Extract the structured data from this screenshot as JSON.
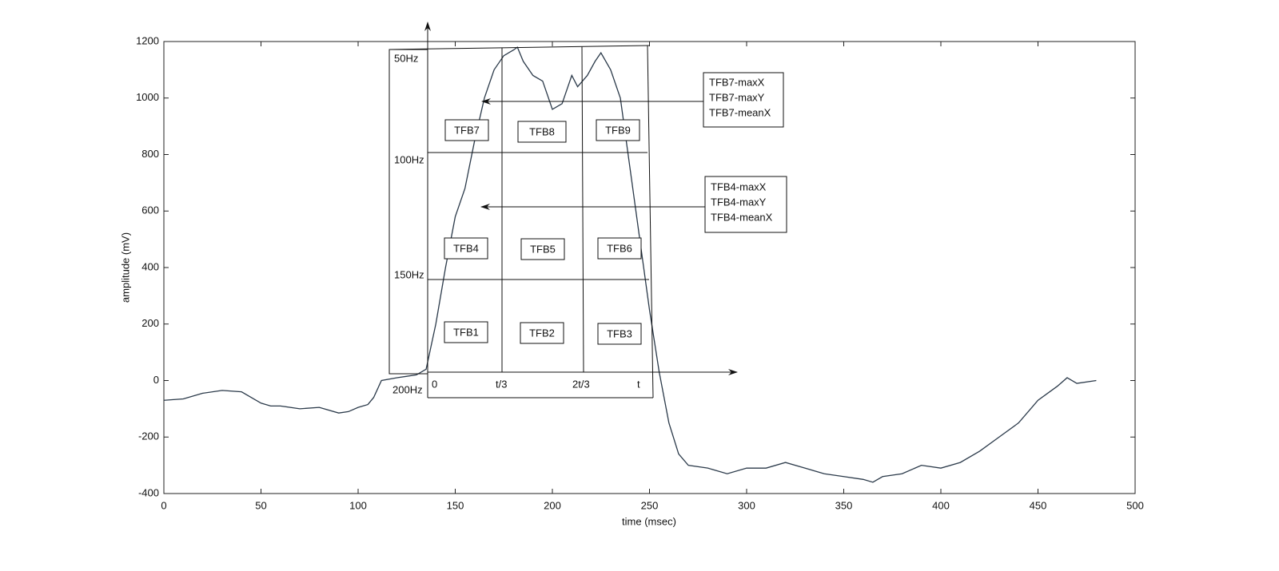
{
  "chart_data": {
    "type": "line",
    "xlabel": "time (msec)",
    "ylabel": "amplitude (mV)",
    "xlim": [
      0,
      500
    ],
    "xticks": [
      0,
      50,
      100,
      150,
      200,
      250,
      300,
      350,
      400,
      450,
      500
    ],
    "ylim": [
      -400,
      1200
    ],
    "yticks": [
      -400,
      -200,
      0,
      200,
      400,
      600,
      800,
      1000,
      1200
    ],
    "series": [
      {
        "color": "#2b3a4a",
        "x": [
          0,
          10,
          20,
          30,
          40,
          50,
          55,
          60,
          70,
          80,
          90,
          95,
          100,
          105,
          108,
          112,
          120,
          130,
          135,
          140,
          145,
          150,
          155,
          160,
          165,
          170,
          175,
          180,
          182,
          185,
          190,
          195,
          200,
          205,
          210,
          213,
          218,
          222,
          225,
          230,
          235,
          240,
          245,
          250,
          255,
          260,
          265,
          270,
          280,
          290,
          300,
          310,
          320,
          330,
          340,
          350,
          360,
          365,
          370,
          380,
          390,
          400,
          410,
          420,
          430,
          440,
          450,
          460,
          465,
          470,
          480
        ],
        "values": [
          -70,
          -65,
          -45,
          -35,
          -40,
          -80,
          -90,
          -90,
          -100,
          -95,
          -115,
          -110,
          -95,
          -85,
          -60,
          0,
          10,
          20,
          40,
          200,
          400,
          580,
          680,
          850,
          1000,
          1100,
          1150,
          1170,
          1180,
          1130,
          1080,
          1060,
          960,
          980,
          1080,
          1040,
          1080,
          1130,
          1160,
          1100,
          1000,
          750,
          500,
          250,
          30,
          -150,
          -260,
          -300,
          -310,
          -330,
          -310,
          -310,
          -290,
          -310,
          -330,
          -340,
          -350,
          -360,
          -340,
          -330,
          -300,
          -310,
          -290,
          -250,
          -200,
          -150,
          -70,
          -20,
          10,
          -10,
          0
        ]
      }
    ],
    "overlay": {
      "freq_labels": [
        "50Hz",
        "100Hz",
        "150Hz",
        "200Hz"
      ],
      "time_labels": [
        "0",
        "t/3",
        "2t/3",
        "t"
      ],
      "blocks": [
        "TFB7",
        "TFB8",
        "TFB9",
        "TFB4",
        "TFB5",
        "TFB6",
        "TFB1",
        "TFB2",
        "TFB3"
      ],
      "callouts": [
        [
          "TFB7-maxX",
          "TFB7-maxY",
          "TFB7-meanX"
        ],
        [
          "TFB4-maxX",
          "TFB4-maxY",
          "TFB4-meanX"
        ]
      ]
    }
  }
}
